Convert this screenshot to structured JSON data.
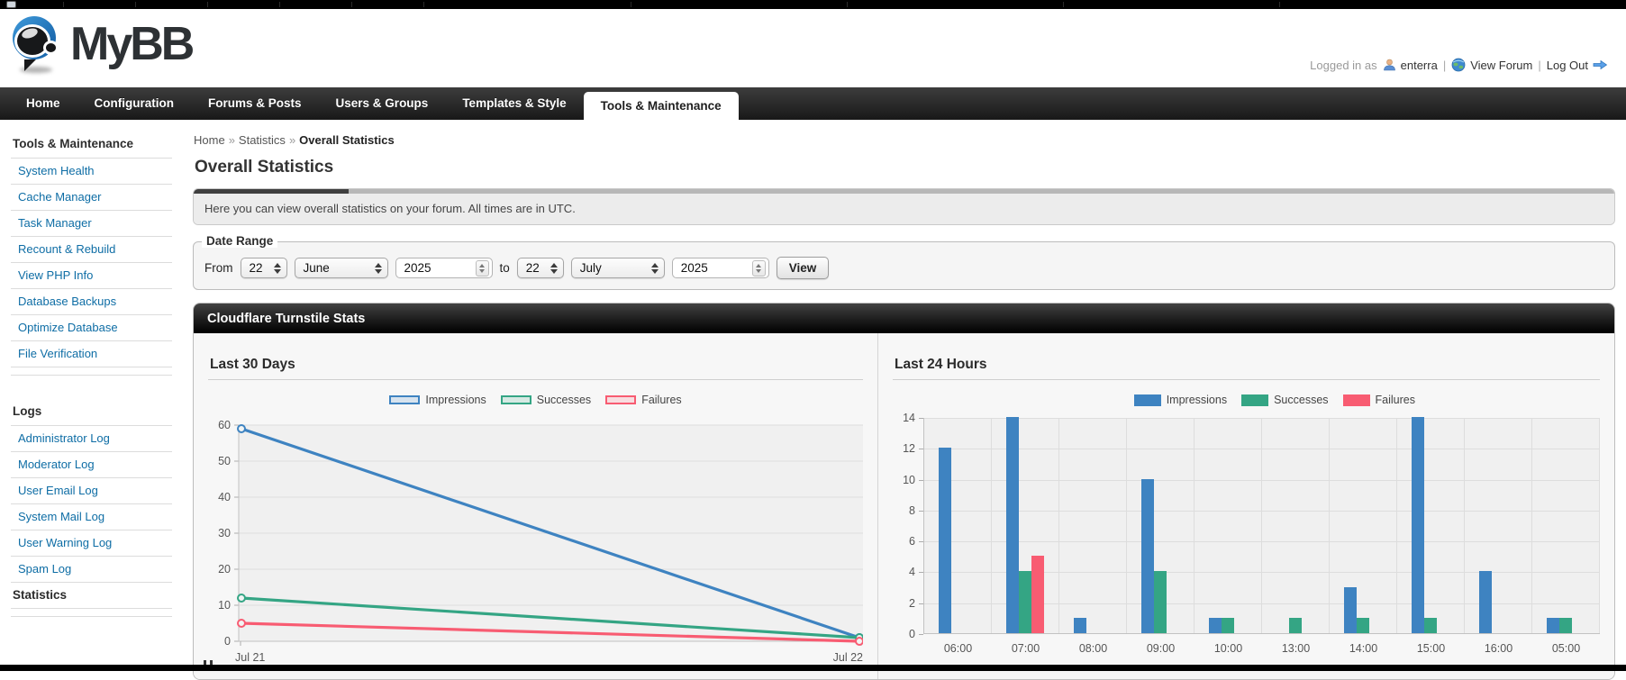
{
  "header": {
    "logo_text": "MyBB",
    "logged_in_label": "Logged in as",
    "username": "enterra",
    "view_forum_label": "View Forum",
    "log_out_label": "Log Out",
    "separator": "|"
  },
  "nav": {
    "tabs": [
      "Home",
      "Configuration",
      "Forums & Posts",
      "Users & Groups",
      "Templates & Style",
      "Tools & Maintenance"
    ],
    "active": "Tools & Maintenance"
  },
  "sidebar": {
    "sections": [
      {
        "title": "Tools & Maintenance",
        "items": [
          "System Health",
          "Cache Manager",
          "Task Manager",
          "Recount & Rebuild",
          "View PHP Info",
          "Database Backups",
          "Optimize Database",
          "File Verification"
        ]
      },
      {
        "title": "Logs",
        "items": [
          "Administrator Log",
          "Moderator Log",
          "User Email Log",
          "System Mail Log",
          "User Warning Log",
          "Spam Log"
        ],
        "active_item": "Statistics"
      }
    ]
  },
  "breadcrumb": {
    "items": [
      "Home",
      "Statistics"
    ],
    "current": "Overall Statistics",
    "separator": "»"
  },
  "page": {
    "title": "Overall Statistics",
    "description": "Here you can view overall statistics on your forum. All times are in UTC."
  },
  "date_range": {
    "legend": "Date Range",
    "from_label": "From",
    "to_label": "to",
    "from": {
      "day": "22",
      "month": "June",
      "year": "2025"
    },
    "to": {
      "day": "22",
      "month": "July",
      "year": "2025"
    },
    "view_button": "View"
  },
  "panel": {
    "title": "Cloudflare Turnstile Stats"
  },
  "colors": {
    "impressions": "#3E83C1",
    "successes": "#34A584",
    "failures": "#F85C72"
  },
  "chart_data": [
    {
      "type": "line",
      "title": "Last 30 Days",
      "x": [
        "Jul 21",
        "Jul 22"
      ],
      "series": [
        {
          "name": "Impressions",
          "values": [
            59,
            1
          ]
        },
        {
          "name": "Successes",
          "values": [
            12,
            1
          ]
        },
        {
          "name": "Failures",
          "values": [
            5,
            0
          ]
        }
      ],
      "ylim": [
        0,
        60
      ],
      "yticks": [
        0,
        10,
        20,
        30,
        40,
        50,
        60
      ],
      "legend_position": "top-center",
      "grid": true
    },
    {
      "type": "bar",
      "title": "Last 24 Hours",
      "categories": [
        "06:00",
        "07:00",
        "08:00",
        "09:00",
        "10:00",
        "13:00",
        "14:00",
        "15:00",
        "16:00",
        "05:00"
      ],
      "series": [
        {
          "name": "Impressions",
          "values": [
            12,
            14,
            1,
            10,
            1,
            null,
            3,
            14,
            4,
            1
          ]
        },
        {
          "name": "Successes",
          "values": [
            null,
            4,
            null,
            4,
            1,
            1,
            1,
            1,
            null,
            1
          ]
        },
        {
          "name": "Failures",
          "values": [
            null,
            5,
            null,
            null,
            null,
            null,
            null,
            null,
            null,
            null
          ]
        }
      ],
      "ylim": [
        0,
        14
      ],
      "yticks": [
        0,
        2,
        4,
        6,
        8,
        10,
        12,
        14
      ],
      "legend_position": "top-right",
      "grid": true
    }
  ]
}
